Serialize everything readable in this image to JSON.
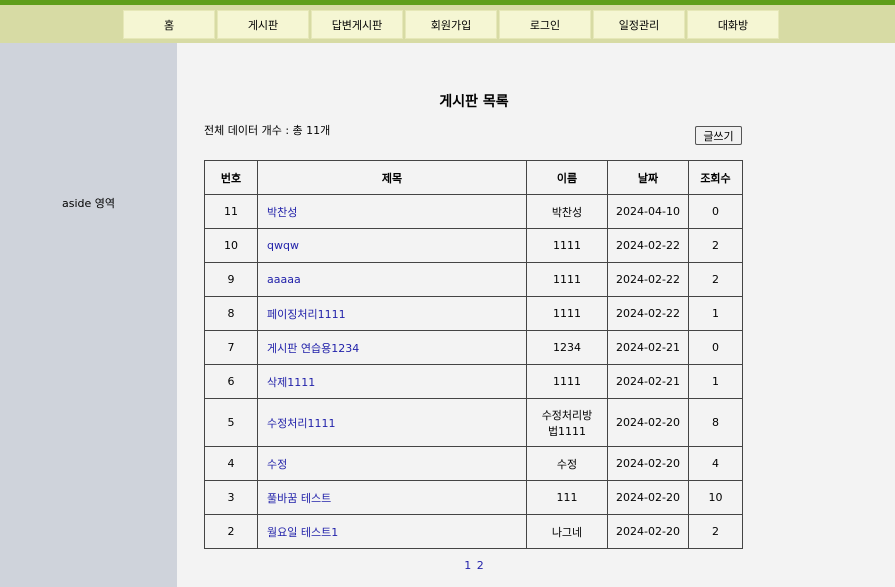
{
  "nav": {
    "items": [
      "홈",
      "게시판",
      "답변게시판",
      "회원가입",
      "로그인",
      "일정관리",
      "대화방"
    ]
  },
  "aside": {
    "label": "aside 영역"
  },
  "main": {
    "title": "게시판 목록",
    "total_text": "전체 데이터 개수 : 총 11개",
    "write_button": "글쓰기",
    "table": {
      "headers": [
        "번호",
        "제목",
        "이름",
        "날짜",
        "조회수"
      ],
      "rows": [
        {
          "no": "11",
          "title": "박찬성",
          "name": "박찬성",
          "date": "2024-04-10",
          "views": "0"
        },
        {
          "no": "10",
          "title": "qwqw",
          "name": "1111",
          "date": "2024-02-22",
          "views": "2"
        },
        {
          "no": "9",
          "title": "aaaaa",
          "name": "1111",
          "date": "2024-02-22",
          "views": "2"
        },
        {
          "no": "8",
          "title": "페이징처리1111",
          "name": "1111",
          "date": "2024-02-22",
          "views": "1"
        },
        {
          "no": "7",
          "title": "게시판 연습용1234",
          "name": "1234",
          "date": "2024-02-21",
          "views": "0"
        },
        {
          "no": "6",
          "title": "삭제1111",
          "name": "1111",
          "date": "2024-02-21",
          "views": "1"
        },
        {
          "no": "5",
          "title": "수정처리1111",
          "name": "수정처리방법1111",
          "date": "2024-02-20",
          "views": "8"
        },
        {
          "no": "4",
          "title": "수정",
          "name": "수정",
          "date": "2024-02-20",
          "views": "4"
        },
        {
          "no": "3",
          "title": "풀바꿈 테스트",
          "name": "111",
          "date": "2024-02-20",
          "views": "10"
        },
        {
          "no": "2",
          "title": "월요일 테스트1",
          "name": "나그네",
          "date": "2024-02-20",
          "views": "2"
        }
      ]
    },
    "pagination": [
      "1",
      "2"
    ]
  }
}
